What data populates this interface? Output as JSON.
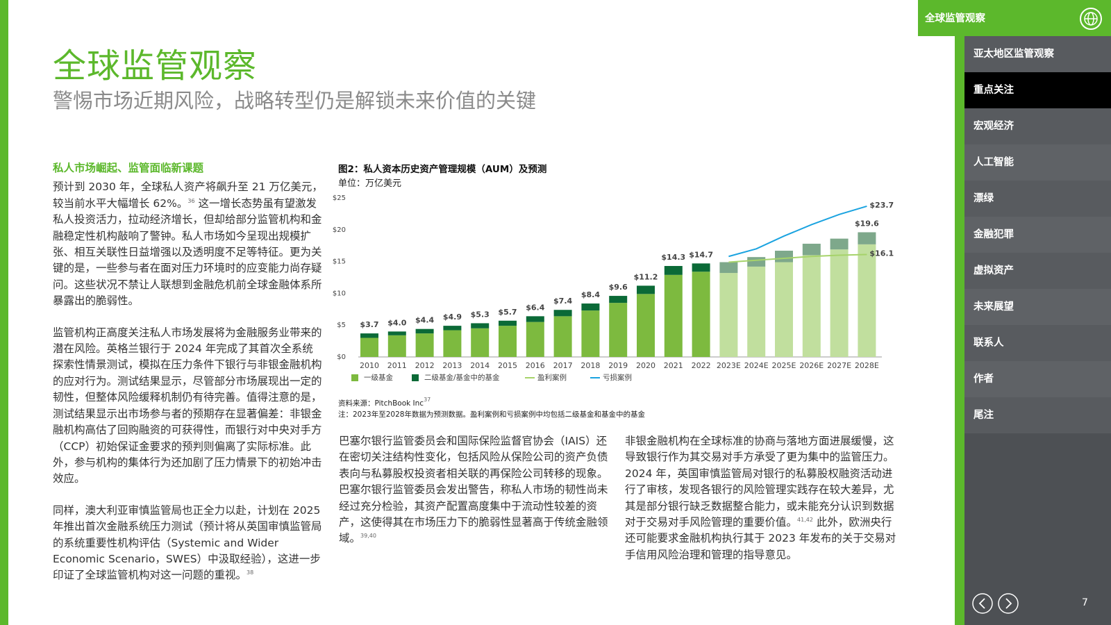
{
  "header": {
    "title": "全球监管观察",
    "subtitle": "警惕市场近期风险，战略转型仍是解锁未来价值的关键"
  },
  "sidebar": {
    "header": "全球监管观察",
    "items": [
      "亚太地区监管观察",
      "重点关注",
      "宏观经济",
      "人工智能",
      "漂绿",
      "金融犯罪",
      "虚拟资产",
      "未来展望",
      "联系人",
      "作者",
      "尾注"
    ],
    "active_item": 1,
    "page_number": "7"
  },
  "left_column": {
    "heading": "私人市场崛起、监管面临新课题",
    "paragraphs": [
      [
        {
          "text": "预计到 2030 年，全球私人资产将飙升至 21 万亿美元，较当前水平大幅增长 62%。"
        },
        {
          "sup": "36"
        },
        {
          "text": " 这一增长态势虽有望激发私人投资活力，拉动经济增长，但却给部分监管机构和金融稳定性机构敲响了警钟。私人市场如今呈现出规模扩张、相互关联性日益增强以及透明度不足等特征。更为关键的是，一些参与者在面对压力环境时的应变能力尚存疑问。这些状况不禁让人联想到金融危机前全球金融体系所暴露出的脆弱性。"
        }
      ],
      [
        {
          "text": "监管机构正高度关注私人市场发展将为金融服务业带来的潜在风险。英格兰银行于 2024 年完成了其首次全系统探索性情景测试，模拟在压力条件下银行与非银金融机构的应对行为。测试结果显示，尽管部分市场展现出一定的韧性，但整体风险缓释机制仍有待完善。值得注意的是，测试结果显示出市场参与者的预期存在显著偏差：非银金融机构高估了回购融资的可获得性，而银行对中央对手方（CCP）初始保证金要求的预判则偏离了实际标准。此外，参与机构的集体行为还加剧了压力情景下的初始冲击效应。"
        }
      ],
      [
        {
          "text": "同样，澳大利亚审慎监管局也正全力以赴，计划在 2025 年推出首次金融系统压力测试（预计将从英国审慎监管局的系统重要性机构评估（Systemic and Wider Economic Scenario，SWES）中汲取经验），这进一步印证了全球监管机构对这一问题的重视。"
        },
        {
          "sup": "38"
        }
      ]
    ]
  },
  "middle_column": {
    "paragraphs": [
      [
        {
          "text": "巴塞尔银行监管委员会和国际保险监督官协会（IAIS）还在密切关注结构性变化，包括风险从保险公司的资产负债表向与私募股权投资者相关联的再保险公司转移的现象。巴塞尔银行监管委员会发出警告，称私人市场的韧性尚未经过充分检验，其资产配置高度集中于流动性较差的资产，这使得其在市场压力下的脆弱性显著高于传统金融领域。"
        },
        {
          "sup": "39,40"
        }
      ]
    ]
  },
  "right_column": {
    "paragraphs": [
      [
        {
          "text": "非银金融机构在全球标准的协商与落地方面进展缓慢，这导致银行作为其交易对手方承受了更为集中的监管压力。2024 年，英国审慎监管局对银行的私募股权融资活动进行了审核，发现各银行的风险管理实践存在较大差异，尤其是部分银行缺乏数据整合能力，或未能充分认识到数据对于交易对手风险管理的重要价值。"
        },
        {
          "sup": "41,42"
        },
        {
          "text": " 此外，欧洲央行还可能要求金融机构执行其于 2023 年发布的关于交易对手信用风险治理和管理的指导意见。"
        }
      ]
    ]
  },
  "chart_data": {
    "type": "bar",
    "title": "图2：私人资本历史资产管理规模（AUM）及预测",
    "subtitle": "单位：万亿美元",
    "source": "资料来源：PitchBook Inc",
    "source_ref": "37",
    "note": "注：2023年至2028年数据为预测数据。盈利案例和亏损案例中均包括二级基金和基金中的基金",
    "categories": [
      "2010",
      "2011",
      "2012",
      "2013",
      "2014",
      "2015",
      "2016",
      "2017",
      "2018",
      "2019",
      "2020",
      "2021",
      "2022",
      "2023E",
      "2024E",
      "2025E",
      "2026E",
      "2027E",
      "2028E"
    ],
    "ylim": [
      0,
      25
    ],
    "yticks": [
      {
        "value": 0,
        "label": "$0"
      },
      {
        "value": 5,
        "label": "$5"
      },
      {
        "value": 10,
        "label": "$10"
      },
      {
        "value": 15,
        "label": "$15"
      },
      {
        "value": 20,
        "label": "$20"
      },
      {
        "value": 25,
        "label": "$25"
      }
    ],
    "grid": false,
    "series": [
      {
        "name": "一级基金",
        "type": "bar",
        "color": "#7dba3f",
        "colors": [
          "#7dba3f",
          "#7dba3f",
          "#7dba3f",
          "#7dba3f",
          "#7dba3f",
          "#7dba3f",
          "#7dba3f",
          "#7dba3f",
          "#7dba3f",
          "#7dba3f",
          "#7dba3f",
          "#7dba3f",
          "#7dba3f",
          "#c1df9e",
          "#c1df9e",
          "#c1df9e",
          "#c1df9e",
          "#c1df9e",
          "#c1df9e"
        ],
        "values": [
          3.0,
          3.4,
          3.7,
          4.2,
          4.5,
          4.9,
          5.5,
          6.4,
          7.3,
          8.5,
          9.9,
          12.9,
          13.4,
          13.2,
          14.2,
          14.9,
          16.0,
          16.9,
          17.7
        ]
      },
      {
        "name": "二级基金/基金中的基金",
        "type": "bar",
        "color": "#0b6a37",
        "colors": [
          "#0b6a37",
          "#0b6a37",
          "#0b6a37",
          "#0b6a37",
          "#0b6a37",
          "#0b6a37",
          "#0b6a37",
          "#0b6a37",
          "#0b6a37",
          "#0b6a37",
          "#0b6a37",
          "#0b6a37",
          "#0b6a37",
          "#7ea88b",
          "#7ea88b",
          "#7ea88b",
          "#7ea88b",
          "#7ea88b",
          "#7ea88b"
        ],
        "values": [
          0.7,
          0.6,
          0.7,
          0.7,
          0.8,
          0.8,
          0.9,
          1.0,
          1.1,
          1.1,
          1.3,
          1.4,
          1.3,
          1.7,
          1.5,
          1.8,
          1.8,
          1.7,
          1.9
        ]
      },
      {
        "name": "盈利案例",
        "type": "line",
        "color": "#a6d36a",
        "values": [
          null,
          null,
          null,
          null,
          null,
          null,
          null,
          null,
          null,
          null,
          null,
          null,
          null,
          14.9,
          15.2,
          15.5,
          15.8,
          16.0,
          16.1
        ],
        "value_labels": [
          null,
          null,
          null,
          null,
          null,
          null,
          null,
          null,
          null,
          null,
          null,
          null,
          null,
          null,
          null,
          null,
          null,
          null,
          "$16.1"
        ]
      },
      {
        "name": "亏损案例",
        "type": "line",
        "color": "#1aa3e0",
        "values": [
          null,
          null,
          null,
          null,
          null,
          null,
          null,
          null,
          null,
          null,
          null,
          null,
          null,
          15.8,
          17.0,
          19.0,
          20.8,
          22.4,
          23.7
        ],
        "value_labels": [
          null,
          null,
          null,
          null,
          null,
          null,
          null,
          null,
          null,
          null,
          null,
          null,
          null,
          null,
          null,
          null,
          null,
          null,
          "$23.7"
        ]
      }
    ],
    "totals": {
      "values": [
        3.7,
        4.0,
        4.4,
        4.9,
        5.3,
        5.7,
        6.4,
        7.4,
        8.4,
        9.6,
        11.2,
        14.3,
        14.7,
        null,
        null,
        null,
        null,
        null,
        19.6
      ],
      "value_labels": [
        "$3.7",
        "$4.0",
        "$4.4",
        "$4.9",
        "$5.3",
        "$5.7",
        "$6.4",
        "$7.4",
        "$8.4",
        "$9.6",
        "$11.2",
        "$14.3",
        "$14.7",
        null,
        null,
        null,
        null,
        null,
        "$19.6"
      ]
    }
  }
}
